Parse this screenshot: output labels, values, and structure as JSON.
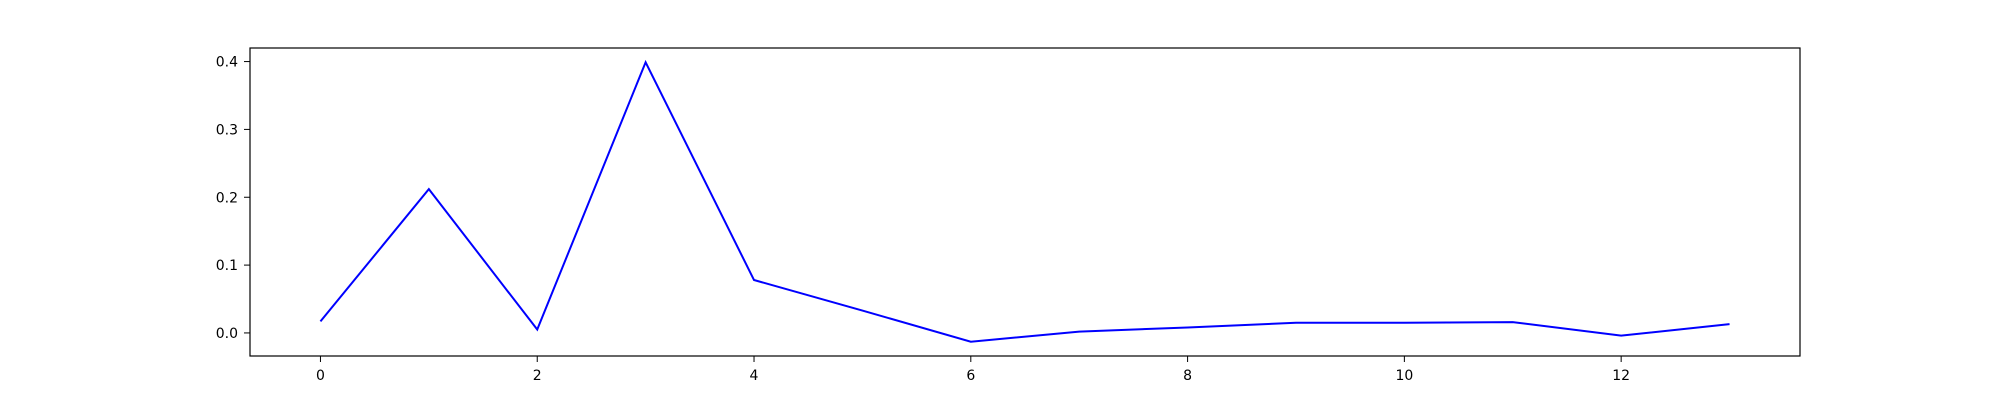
{
  "chart_data": {
    "type": "line",
    "title": "",
    "xlabel": "",
    "ylabel": "",
    "xlim": [
      -0.65,
      13.65
    ],
    "ylim": [
      -0.034,
      0.42
    ],
    "xticks": [
      0,
      2,
      4,
      6,
      8,
      10,
      12
    ],
    "yticks": [
      0.0,
      0.1,
      0.2,
      0.3,
      0.4
    ],
    "xtick_labels": [
      "0",
      "2",
      "4",
      "6",
      "8",
      "10",
      "12"
    ],
    "ytick_labels": [
      "0.0",
      "0.1",
      "0.2",
      "0.3",
      "0.4"
    ],
    "grid": false,
    "series": [
      {
        "color": "#0000ff",
        "x": [
          0,
          1,
          2,
          3,
          4,
          5,
          6,
          7,
          8,
          9,
          10,
          11,
          12,
          13
        ],
        "values": [
          0.017,
          0.212,
          0.005,
          0.399,
          0.078,
          0.033,
          -0.013,
          0.002,
          0.008,
          0.015,
          0.015,
          0.016,
          -0.004,
          0.013
        ]
      }
    ]
  }
}
